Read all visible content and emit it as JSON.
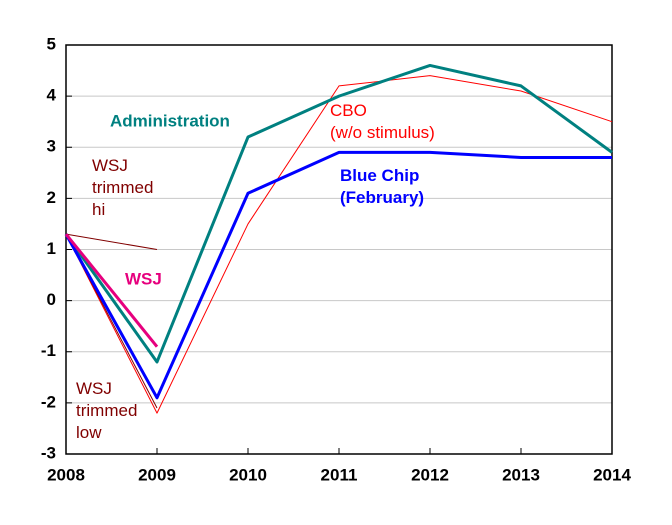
{
  "chart_data": {
    "type": "line",
    "x": [
      2008,
      2009,
      2010,
      2011,
      2012,
      2013,
      2014
    ],
    "xlim": [
      2008,
      2014
    ],
    "xticks": [
      2008,
      2009,
      2010,
      2011,
      2012,
      2013,
      2014
    ],
    "ylim": [
      -3,
      5
    ],
    "yticks": [
      -3,
      -2,
      -1,
      0,
      1,
      2,
      3,
      4,
      5
    ],
    "grid": true,
    "series": [
      {
        "name": "CBO (w/o stimulus)",
        "color": "#ff0000",
        "values": [
          1.3,
          -2.2,
          1.5,
          4.2,
          4.4,
          4.1,
          3.5
        ]
      },
      {
        "name": "WSJ trimmed hi",
        "color": "#800000",
        "values": [
          1.3,
          1.0,
          null,
          null,
          null,
          null,
          null
        ]
      },
      {
        "name": "WSJ trimmed low",
        "color": "#800000",
        "values": [
          1.3,
          -2.1,
          null,
          null,
          null,
          null,
          null
        ]
      },
      {
        "name": "Administration",
        "color": "#008080",
        "values": [
          1.3,
          -1.2,
          3.2,
          4.0,
          4.6,
          4.2,
          2.9
        ]
      },
      {
        "name": "Blue Chip (February)",
        "color": "#0000ff",
        "values": [
          1.3,
          -1.9,
          2.1,
          2.9,
          2.9,
          2.8,
          2.8
        ]
      },
      {
        "name": "WSJ",
        "color": "#e6007e",
        "values": [
          1.3,
          -0.9,
          null,
          null,
          null,
          null,
          null
        ]
      }
    ]
  }
}
